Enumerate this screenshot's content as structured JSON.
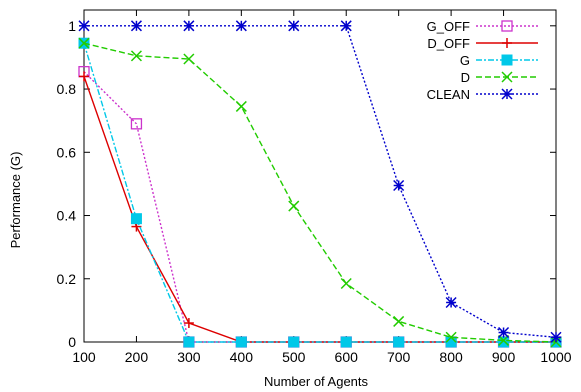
{
  "chart_data": {
    "type": "line",
    "xlabel": "Number of Agents",
    "ylabel": "Performance (G)",
    "x": [
      100,
      200,
      300,
      400,
      500,
      600,
      700,
      800,
      900,
      1000
    ],
    "xlim": [
      100,
      1000
    ],
    "ylim": [
      0,
      1.05
    ],
    "x_ticks": [
      100,
      200,
      300,
      400,
      500,
      600,
      700,
      800,
      900,
      1000
    ],
    "y_ticks": [
      0,
      0.2,
      0.4,
      0.6,
      0.8,
      1
    ],
    "x_tick_labels": [
      "100",
      "200",
      "300",
      "400",
      "500",
      "600",
      "700",
      "800",
      "900",
      "1000"
    ],
    "y_tick_labels": [
      "0",
      "0.2",
      "0.4",
      "0.6",
      "0.8",
      "1"
    ],
    "grid": false,
    "legend_position": "top-right",
    "series": [
      {
        "name": "G_OFF",
        "color": "#cc33cc",
        "marker": "open-square",
        "dash": "dotted",
        "x": [
          100,
          200,
          300,
          400,
          500,
          600,
          700,
          800,
          900,
          1000
        ],
        "values": [
          0.855,
          0.69,
          0,
          0,
          0,
          0,
          0,
          0,
          0,
          0
        ]
      },
      {
        "name": "D_OFF",
        "color": "#dd0000",
        "marker": "plus",
        "dash": "solid",
        "x": [
          100,
          200,
          300,
          400,
          500,
          600,
          700,
          800,
          900,
          1000
        ],
        "values": [
          0.84,
          0.365,
          0.06,
          0,
          0,
          0,
          0,
          0,
          0,
          0
        ]
      },
      {
        "name": "G",
        "color": "#00c8e8",
        "marker": "filled-square",
        "dash": "dashdot",
        "x": [
          100,
          200,
          300,
          400,
          500,
          600,
          700,
          800,
          900,
          1000
        ],
        "values": [
          0.945,
          0.39,
          0,
          0,
          0,
          0,
          0,
          0,
          0,
          0
        ]
      },
      {
        "name": "D",
        "color": "#22cc00",
        "marker": "x",
        "dash": "dashed",
        "x": [
          100,
          200,
          300,
          400,
          500,
          600,
          700,
          800,
          900,
          1000
        ],
        "values": [
          0.945,
          0.905,
          0.895,
          0.745,
          0.43,
          0.185,
          0.065,
          0.015,
          0.005,
          0
        ]
      },
      {
        "name": "CLEAN",
        "color": "#0000cc",
        "marker": "star",
        "dash": "dotted",
        "x": [
          100,
          200,
          300,
          400,
          500,
          600,
          700,
          800,
          900,
          1000
        ],
        "values": [
          1,
          1,
          1,
          1,
          1,
          1,
          0.495,
          0.125,
          0.03,
          0.015
        ]
      }
    ]
  }
}
